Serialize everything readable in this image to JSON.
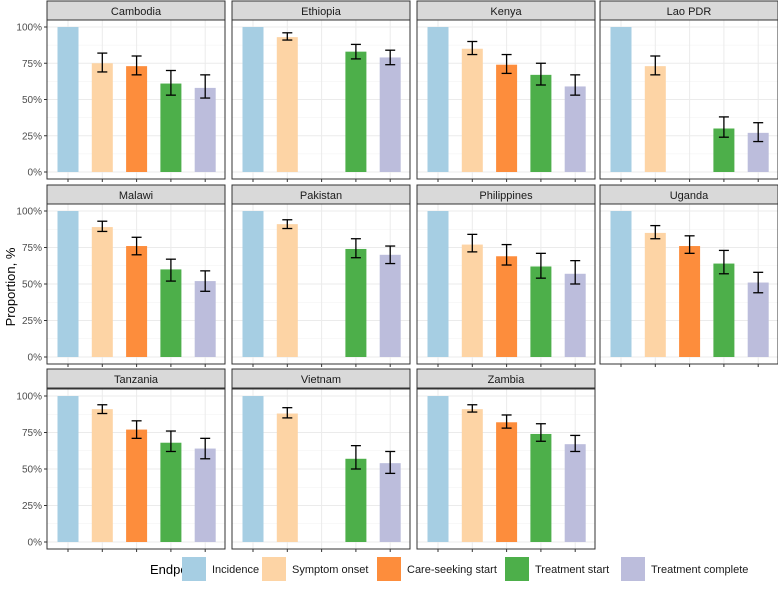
{
  "chart_data": {
    "type": "bar",
    "layout": "faceted",
    "ylabel": "Proportion, %",
    "xlabel": "",
    "ylim": [
      0,
      100
    ],
    "y_ticks": [
      0,
      25,
      50,
      75,
      100
    ],
    "y_tick_labels": [
      "0%",
      "25%",
      "50%",
      "75%",
      "100%"
    ],
    "legend": {
      "title": "Endpoint",
      "placement": "bottom",
      "entries": [
        "Incidence",
        "Symptom onset",
        "Care-seeking start",
        "Treatment start",
        "Treatment complete"
      ]
    },
    "endpoints": [
      "Incidence",
      "Symptom onset",
      "Care-seeking start",
      "Treatment start",
      "Treatment complete"
    ],
    "colors": {
      "Incidence": "#a6cee3",
      "Symptom onset": "#fdd4a5",
      "Care-seeking start": "#fd8d3c",
      "Treatment start": "#4daf4a",
      "Treatment complete": "#bcbddc"
    },
    "facets": [
      {
        "title": "Cambodia",
        "values": [
          100,
          75,
          73,
          61,
          58
        ],
        "ci_low": [
          null,
          69,
          67,
          53,
          51
        ],
        "ci_high": [
          null,
          82,
          80,
          70,
          67
        ]
      },
      {
        "title": "Ethiopia",
        "values": [
          100,
          93,
          null,
          83,
          79
        ],
        "ci_low": [
          null,
          91,
          null,
          78,
          74
        ],
        "ci_high": [
          null,
          96,
          null,
          88,
          84
        ]
      },
      {
        "title": "Kenya",
        "values": [
          100,
          85,
          74,
          67,
          59
        ],
        "ci_low": [
          null,
          81,
          68,
          60,
          53
        ],
        "ci_high": [
          null,
          90,
          81,
          75,
          67
        ]
      },
      {
        "title": "Lao PDR",
        "values": [
          100,
          73,
          null,
          30,
          27
        ],
        "ci_low": [
          null,
          67,
          null,
          24,
          21
        ],
        "ci_high": [
          null,
          80,
          null,
          38,
          34
        ]
      },
      {
        "title": "Malawi",
        "values": [
          100,
          89,
          76,
          60,
          52
        ],
        "ci_low": [
          null,
          86,
          70,
          52,
          45
        ],
        "ci_high": [
          null,
          93,
          82,
          67,
          59
        ]
      },
      {
        "title": "Pakistan",
        "values": [
          100,
          91,
          null,
          74,
          70
        ],
        "ci_low": [
          null,
          88,
          null,
          68,
          64
        ],
        "ci_high": [
          null,
          94,
          null,
          81,
          76
        ]
      },
      {
        "title": "Philippines",
        "values": [
          100,
          77,
          69,
          62,
          57
        ],
        "ci_low": [
          null,
          72,
          63,
          54,
          50
        ],
        "ci_high": [
          null,
          84,
          77,
          71,
          66
        ]
      },
      {
        "title": "Uganda",
        "values": [
          100,
          85,
          76,
          64,
          51
        ],
        "ci_low": [
          null,
          81,
          71,
          57,
          44
        ],
        "ci_high": [
          null,
          90,
          83,
          73,
          58
        ]
      },
      {
        "title": "Tanzania",
        "values": [
          100,
          91,
          77,
          68,
          64
        ],
        "ci_low": [
          null,
          88,
          71,
          62,
          57
        ],
        "ci_high": [
          null,
          94,
          83,
          76,
          71
        ]
      },
      {
        "title": "Vietnam",
        "values": [
          100,
          88,
          null,
          57,
          54
        ],
        "ci_low": [
          null,
          85,
          null,
          50,
          47
        ],
        "ci_high": [
          null,
          92,
          null,
          66,
          62
        ]
      },
      {
        "title": "Zambia",
        "values": [
          100,
          91,
          82,
          74,
          67
        ],
        "ci_low": [
          null,
          89,
          78,
          69,
          62
        ],
        "ci_high": [
          null,
          94,
          87,
          81,
          73
        ]
      }
    ]
  }
}
